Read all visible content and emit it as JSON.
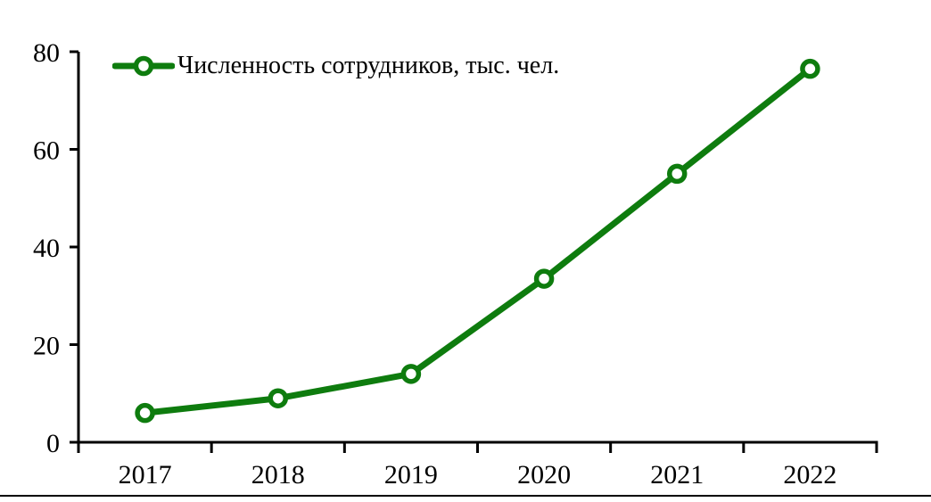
{
  "page": {
    "background_color": "#ffffff",
    "divider_color": "#000000"
  },
  "chart_data": {
    "type": "line",
    "title": "",
    "xlabel": "",
    "ylabel": "",
    "categories": [
      "2017",
      "2018",
      "2019",
      "2020",
      "2021",
      "2022"
    ],
    "series": [
      {
        "name": "Численность сотрудников, тыс. чел.",
        "values": [
          6,
          9,
          14,
          33.5,
          55,
          76.5
        ],
        "color": "#0e7c0e",
        "marker": "open-circle",
        "marker_fill": "#ffffff",
        "line_width": 7
      }
    ],
    "ylim": [
      0,
      80
    ],
    "yticks": [
      0,
      20,
      40,
      60,
      80
    ],
    "grid": false,
    "legend_position": "top-left",
    "axis_color": "#000000",
    "background": "#ffffff"
  }
}
